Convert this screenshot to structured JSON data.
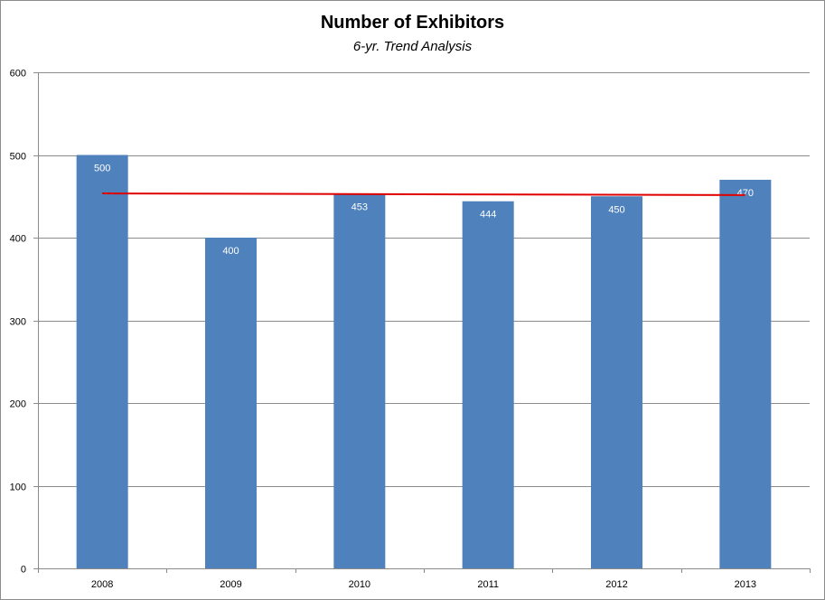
{
  "chart_data": {
    "type": "bar",
    "title": "Number of Exhibitors",
    "subtitle": "6-yr. Trend Analysis",
    "xlabel": "",
    "ylabel": "",
    "categories": [
      "2008",
      "2009",
      "2010",
      "2011",
      "2012",
      "2013"
    ],
    "values": [
      500,
      400,
      453,
      444,
      450,
      470
    ],
    "data_labels": [
      "500",
      "400",
      "453",
      "444",
      "450",
      "470"
    ],
    "ylim": [
      0,
      600
    ],
    "yticks": [
      0,
      100,
      200,
      300,
      400,
      500,
      600
    ],
    "grid": true,
    "legend": "none",
    "bar_color": "#4f81bd",
    "trendline": {
      "type": "linear",
      "color": "#e00000",
      "start": 453.5,
      "end": 451.5
    }
  }
}
